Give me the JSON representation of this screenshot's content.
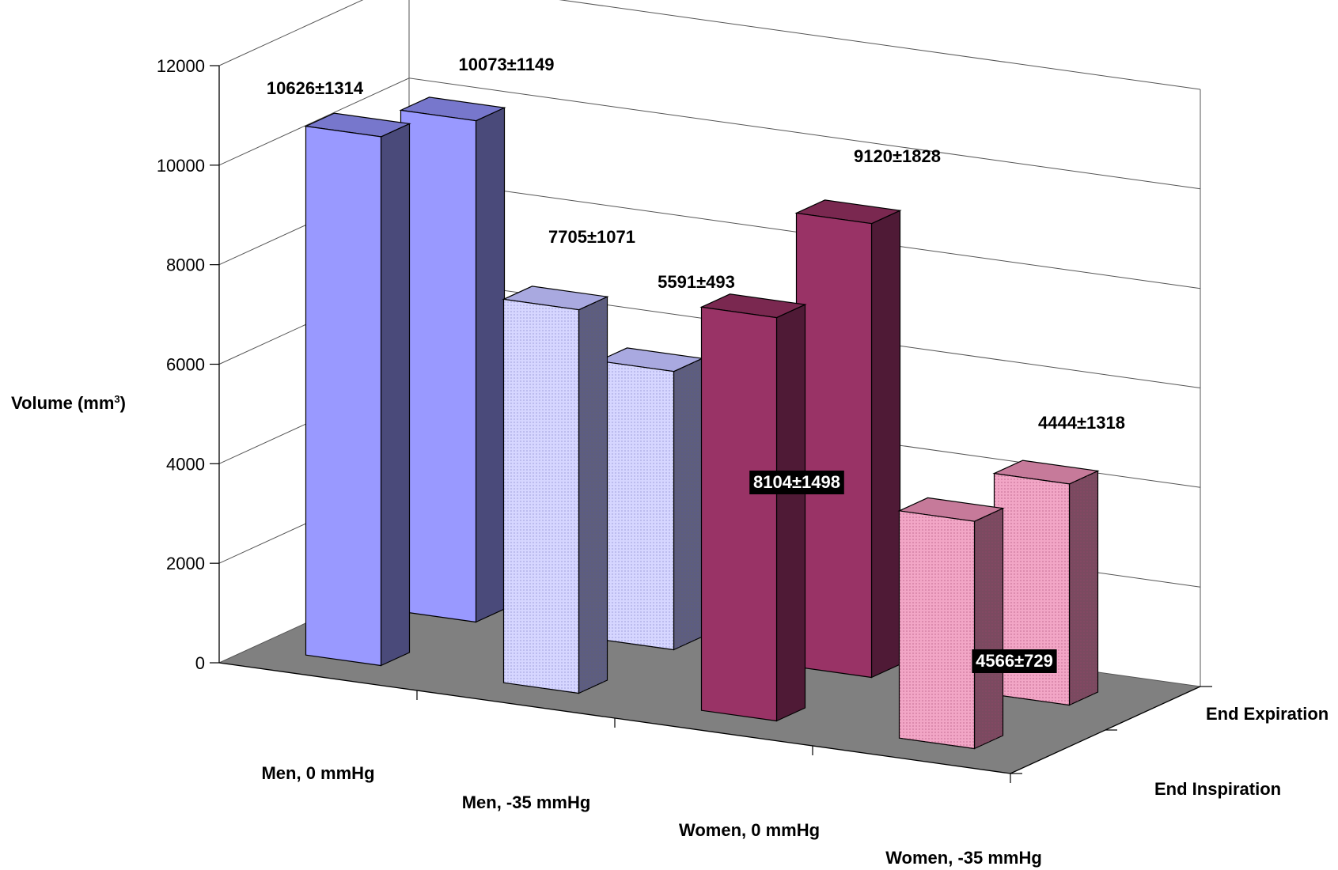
{
  "chart_data": {
    "type": "bar",
    "title": "",
    "ylabel": "Volume (mm",
    "ylabel_sup": "3",
    "ylabel_close": ")",
    "ylim": [
      0,
      12000
    ],
    "yticks": [
      "0",
      "2000",
      "4000",
      "6000",
      "8000",
      "10000",
      "12000"
    ],
    "categories": [
      "Men, 0 mmHg",
      "Men, -35 mmHg",
      "Women, 0 mmHg",
      "Women, -35 mmHg"
    ],
    "series": [
      {
        "name": "End Inspiration",
        "values": [
          10626,
          7705,
          8104,
          4566
        ],
        "labels": [
          "10626±1314",
          "7705±1071",
          "8104±1498",
          "4566±729"
        ]
      },
      {
        "name": "End Expiration",
        "values": [
          10073,
          5591,
          9120,
          4444
        ],
        "labels": [
          "10073±1149",
          "5591±493",
          "9120±1828",
          "4444±1318"
        ]
      }
    ],
    "style": "3d-clustered-columns",
    "grid": true,
    "colors": {
      "men_0": {
        "front": "#9999ff",
        "side": "#4a4a7a",
        "top": "#7777cc"
      },
      "men_35": {
        "front": "#d6d6ff",
        "side": "#5e5e7c",
        "top": "#a9a9e0",
        "pattern": "dotted"
      },
      "women_0": {
        "front": "#993366",
        "side": "#4f1a36",
        "top": "#7a2850"
      },
      "women_35": {
        "front": "#f2a6c6",
        "side": "#7a4a60",
        "top": "#c67a9a",
        "pattern": "dotted"
      },
      "floor": "#808080"
    }
  }
}
